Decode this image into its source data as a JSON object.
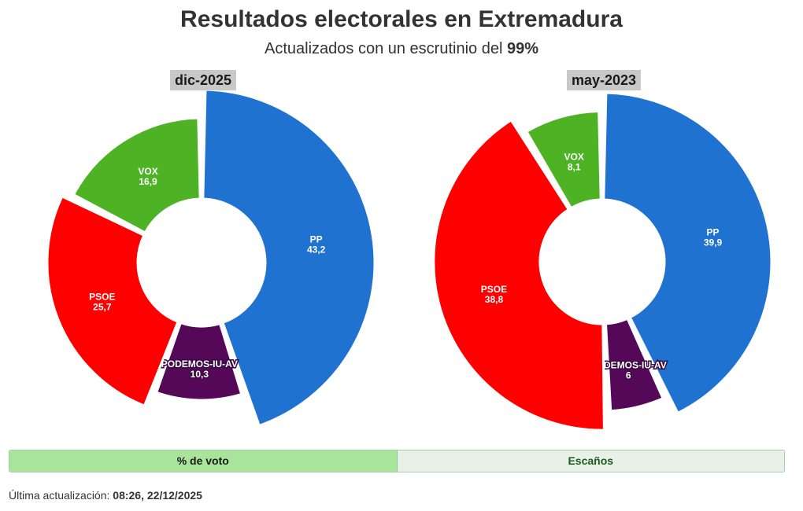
{
  "header": {
    "title": "Resultados electorales en Extremadura",
    "subtitle_prefix": "Actualizados con un escrutinio del",
    "subtitle_value": "99%"
  },
  "chart_data": [
    {
      "type": "pie",
      "title": "dic-2025",
      "value_unit": "% de voto",
      "slices": [
        {
          "label": "PP",
          "value": 43.2,
          "display": "43,2",
          "color": "#1f72cf"
        },
        {
          "label": "PODEMOS-IU-AV",
          "value": 10.3,
          "display": "10,3",
          "color": "#560858"
        },
        {
          "label": "PSOE",
          "value": 25.7,
          "display": "25,7",
          "color": "#ff0000"
        },
        {
          "label": "VOX",
          "value": 16.9,
          "display": "16,9",
          "color": "#4db224"
        }
      ]
    },
    {
      "type": "pie",
      "title": "may-2023",
      "value_unit": "% de voto",
      "slices": [
        {
          "label": "PP",
          "value": 39.9,
          "display": "39,9",
          "color": "#1f72cf"
        },
        {
          "label": "PODEMOS-IU-AV",
          "value": 6,
          "display": "6",
          "color": "#560858"
        },
        {
          "label": "PSOE",
          "value": 38.8,
          "display": "38,8",
          "color": "#ff0000"
        },
        {
          "label": "VOX",
          "value": 8.1,
          "display": "8,1",
          "color": "#4db224"
        }
      ]
    }
  ],
  "tabs": {
    "vote_label": "% de voto",
    "seats_label": "Escaños"
  },
  "footer": {
    "label": "Última actualización:",
    "value": "08:26, 22/12/2025"
  }
}
